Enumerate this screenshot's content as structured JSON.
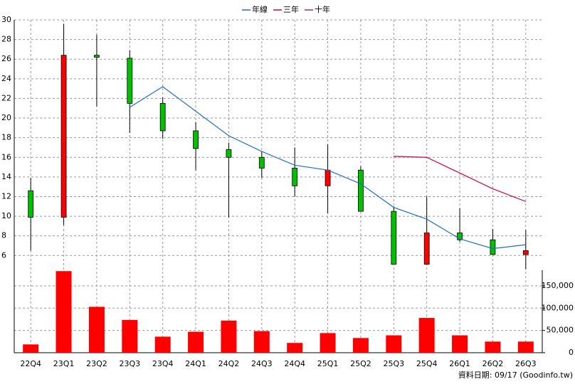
{
  "chart_data": [
    {
      "type": "candlestick",
      "categories": [
        "22Q4",
        "23Q1",
        "23Q2",
        "23Q3",
        "23Q4",
        "24Q1",
        "24Q2",
        "24Q3",
        "24Q4",
        "25Q1",
        "25Q2",
        "25Q3",
        "25Q4",
        "26Q1",
        "26Q2",
        "26Q3"
      ],
      "open": [
        12.6,
        9.9,
        26.4,
        26.1,
        21.5,
        18.7,
        16.8,
        16.0,
        14.9,
        13.1,
        14.7,
        10.5,
        5.1,
        8.3,
        7.6,
        6.1
      ],
      "high": [
        13.9,
        29.6,
        28.5,
        26.9,
        22.1,
        19.6,
        17.5,
        16.6,
        17.0,
        17.3,
        15.1,
        11.0,
        12.0,
        10.8,
        8.7,
        8.6
      ],
      "low": [
        6.5,
        9.1,
        21.2,
        18.5,
        17.9,
        14.7,
        9.9,
        13.9,
        12.0,
        10.3,
        10.5,
        5.1,
        5.1,
        7.4,
        6.1,
        4.6
      ],
      "close": [
        9.9,
        26.4,
        26.2,
        21.5,
        18.7,
        16.9,
        16.0,
        14.9,
        13.1,
        14.7,
        10.5,
        5.1,
        8.3,
        7.6,
        6.1,
        6.5
      ],
      "up_color": "#ff0000",
      "down_color": "#00c000",
      "series": [
        {
          "name": "年線",
          "color": "#1f6fc8",
          "values": [
            null,
            null,
            null,
            21.1,
            23.2,
            20.7,
            18.2,
            16.6,
            15.2,
            14.7,
            13.3,
            10.9,
            9.7,
            7.7,
            6.7,
            7.1
          ]
        },
        {
          "name": "三年",
          "color": "#d4003c",
          "values": [
            null,
            null,
            null,
            null,
            null,
            null,
            null,
            null,
            null,
            null,
            null,
            16.1,
            16.0,
            14.4,
            12.8,
            11.5
          ]
        },
        {
          "name": "十年",
          "color": "#a0306e",
          "values": [
            null,
            null,
            null,
            null,
            null,
            null,
            null,
            null,
            null,
            null,
            null,
            null,
            null,
            null,
            null,
            null
          ]
        }
      ],
      "ylim": [
        4.5,
        30
      ],
      "yticks": [
        6,
        8,
        10,
        12,
        14,
        16,
        18,
        20,
        22,
        24,
        26,
        28,
        30
      ],
      "grid": true,
      "legend": "top"
    },
    {
      "type": "bar",
      "values": [
        18600,
        183000,
        103000,
        73500,
        36000,
        47000,
        72000,
        48500,
        22000,
        44000,
        33000,
        39000,
        78000,
        39000,
        25000,
        25000
      ],
      "color": "#ff0000",
      "ylim": [
        0,
        185000
      ],
      "yticks": [
        0,
        {
          "value": 50000,
          "label": "50,000"
        },
        {
          "value": 100000,
          "label": "100,000"
        },
        {
          "value": 150000,
          "label": "150,000"
        }
      ],
      "grid": true
    }
  ],
  "footer": "資料日期: 09/17  (Goodinfo.tw)"
}
